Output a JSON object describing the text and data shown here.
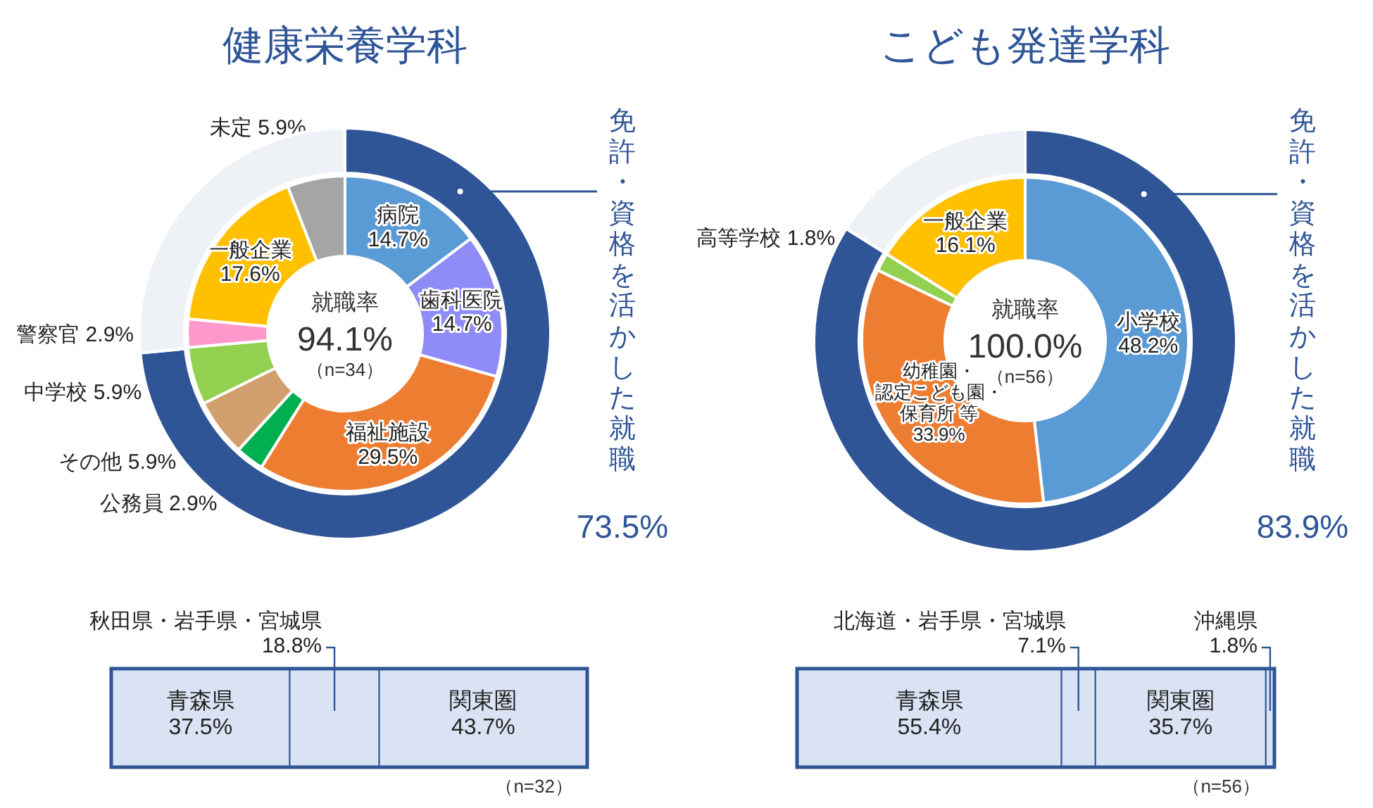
{
  "chart_data": [
    {
      "type": "donut",
      "title": "健康栄養学科",
      "categories": [
        "病院",
        "歯科医院",
        "福祉施設",
        "公務員",
        "その他",
        "中学校",
        "警察官",
        "一般企業",
        "未定"
      ],
      "values": [
        14.7,
        14.7,
        29.5,
        2.9,
        5.9,
        5.9,
        2.9,
        17.6,
        5.9
      ],
      "value_labels": [
        "14.7%",
        "14.7%",
        "29.5%",
        "2.9%",
        "5.9%",
        "5.9%",
        "2.9%",
        "17.6%",
        "5.9%"
      ],
      "colors": [
        "#5b9bd5",
        "#8f8cf7",
        "#ed7d31",
        "#00b050",
        "#d2a06e",
        "#92d050",
        "#ff99cc",
        "#ffc000",
        "#a5a5a5"
      ],
      "annotations": [
        "就職率",
        "94.1%",
        "（n=34）"
      ]
    },
    {
      "type": "donut",
      "categories": [
        "免許・資格を活かした就職",
        null
      ],
      "values": [
        73.5,
        26.5
      ],
      "value_labels": [
        "73.5%",
        null
      ],
      "colors": [
        "#2f5597",
        "#eef1f6"
      ]
    },
    {
      "type": "bar",
      "orientation": "horizontal",
      "stacked": true,
      "categories": [
        null
      ],
      "xlim": [
        0,
        100
      ],
      "tick_labels": false,
      "annotations": [
        "（n=32）"
      ],
      "series": [
        {
          "name": "青森県",
          "color": "#dae3f3",
          "values": [
            37.5
          ],
          "value_labels": [
            "37.5%"
          ]
        },
        {
          "name": "秋田県・岩手県・宮城県",
          "color": "#dae3f3",
          "values": [
            18.8
          ],
          "value_labels": [
            "18.8%"
          ]
        },
        {
          "name": "関東圏",
          "color": "#dae3f3",
          "values": [
            43.7
          ],
          "value_labels": [
            "43.7%"
          ]
        }
      ]
    },
    {
      "type": "donut",
      "title": "こども発達学科",
      "categories": [
        "小学校",
        "幼稚園・認定こども園・保育所 等",
        "高等学校",
        "一般企業"
      ],
      "values": [
        48.2,
        33.9,
        1.8,
        16.1
      ],
      "value_labels": [
        "48.2%",
        "33.9%",
        "1.8%",
        "16.1%"
      ],
      "colors": [
        "#5b9bd5",
        "#ed7d31",
        "#92d050",
        "#ffc000"
      ],
      "annotations": [
        "就職率",
        "100.0%",
        "（n=56）"
      ]
    },
    {
      "type": "donut",
      "categories": [
        "免許・資格を活かした就職",
        null
      ],
      "values": [
        83.9,
        16.1
      ],
      "value_labels": [
        "83.9%",
        null
      ],
      "colors": [
        "#2f5597",
        "#eef1f6"
      ]
    },
    {
      "type": "bar",
      "orientation": "horizontal",
      "stacked": true,
      "categories": [
        null
      ],
      "xlim": [
        0,
        100
      ],
      "tick_labels": false,
      "annotations": [
        "（n=56）"
      ],
      "series": [
        {
          "name": "青森県",
          "color": "#dae3f3",
          "values": [
            55.4
          ],
          "value_labels": [
            "55.4%"
          ]
        },
        {
          "name": "北海道・岩手県・宮城県",
          "color": "#dae3f3",
          "values": [
            7.1
          ],
          "value_labels": [
            "7.1%"
          ]
        },
        {
          "name": "関東圏",
          "color": "#dae3f3",
          "values": [
            35.7
          ],
          "value_labels": [
            "35.7%"
          ]
        },
        {
          "name": "沖縄県",
          "color": "#dae3f3",
          "values": [
            1.8
          ],
          "value_labels": [
            "1.8%"
          ]
        }
      ]
    }
  ]
}
